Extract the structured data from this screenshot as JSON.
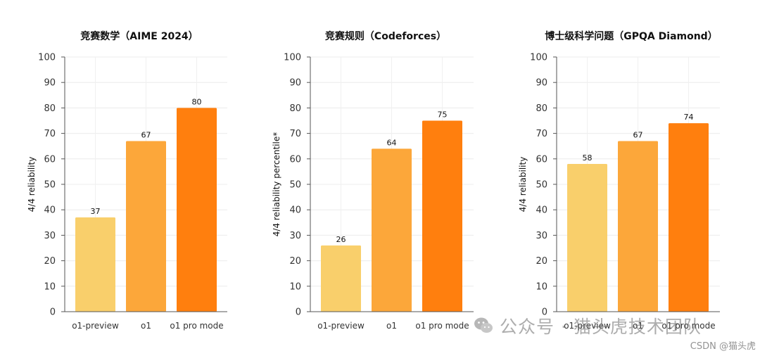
{
  "chart_data": [
    {
      "type": "bar",
      "title": "竞赛数学（AIME 2024）",
      "ylabel": "4/4 reliability",
      "xlabel": "",
      "categories": [
        "o1-preview",
        "o1",
        "o1 pro mode"
      ],
      "values": [
        37,
        67,
        80
      ],
      "ylim": [
        0,
        100
      ],
      "yticks": [
        0,
        10,
        20,
        30,
        40,
        50,
        60,
        70,
        80,
        90,
        100
      ],
      "colors": [
        "#F9CF6B",
        "#FCA73A",
        "#FF7F0E"
      ],
      "grid": true
    },
    {
      "type": "bar",
      "title": "竞赛规则（Codeforces）",
      "ylabel": "4/4 reliability percentile*",
      "xlabel": "",
      "categories": [
        "o1-preview",
        "o1",
        "o1 pro mode"
      ],
      "values": [
        26,
        64,
        75
      ],
      "ylim": [
        0,
        100
      ],
      "yticks": [
        0,
        10,
        20,
        30,
        40,
        50,
        60,
        70,
        80,
        90,
        100
      ],
      "colors": [
        "#F9CF6B",
        "#FCA73A",
        "#FF7F0E"
      ],
      "grid": true
    },
    {
      "type": "bar",
      "title": "博士级科学问题（GPQA Diamond）",
      "ylabel": "4/4 reliability",
      "xlabel": "",
      "categories": [
        "o1-preview",
        "o1",
        "o1 pro mode"
      ],
      "values": [
        58,
        67,
        74
      ],
      "ylim": [
        0,
        100
      ],
      "yticks": [
        0,
        10,
        20,
        30,
        40,
        50,
        60,
        70,
        80,
        90,
        100
      ],
      "colors": [
        "#F9CF6B",
        "#FCA73A",
        "#FF7F0E"
      ],
      "grid": true
    }
  ],
  "watermark": {
    "text": "公众号 · 猫头虎技术团队",
    "icon": "wechat-icon"
  },
  "credit": "CSDN @猫头虎"
}
